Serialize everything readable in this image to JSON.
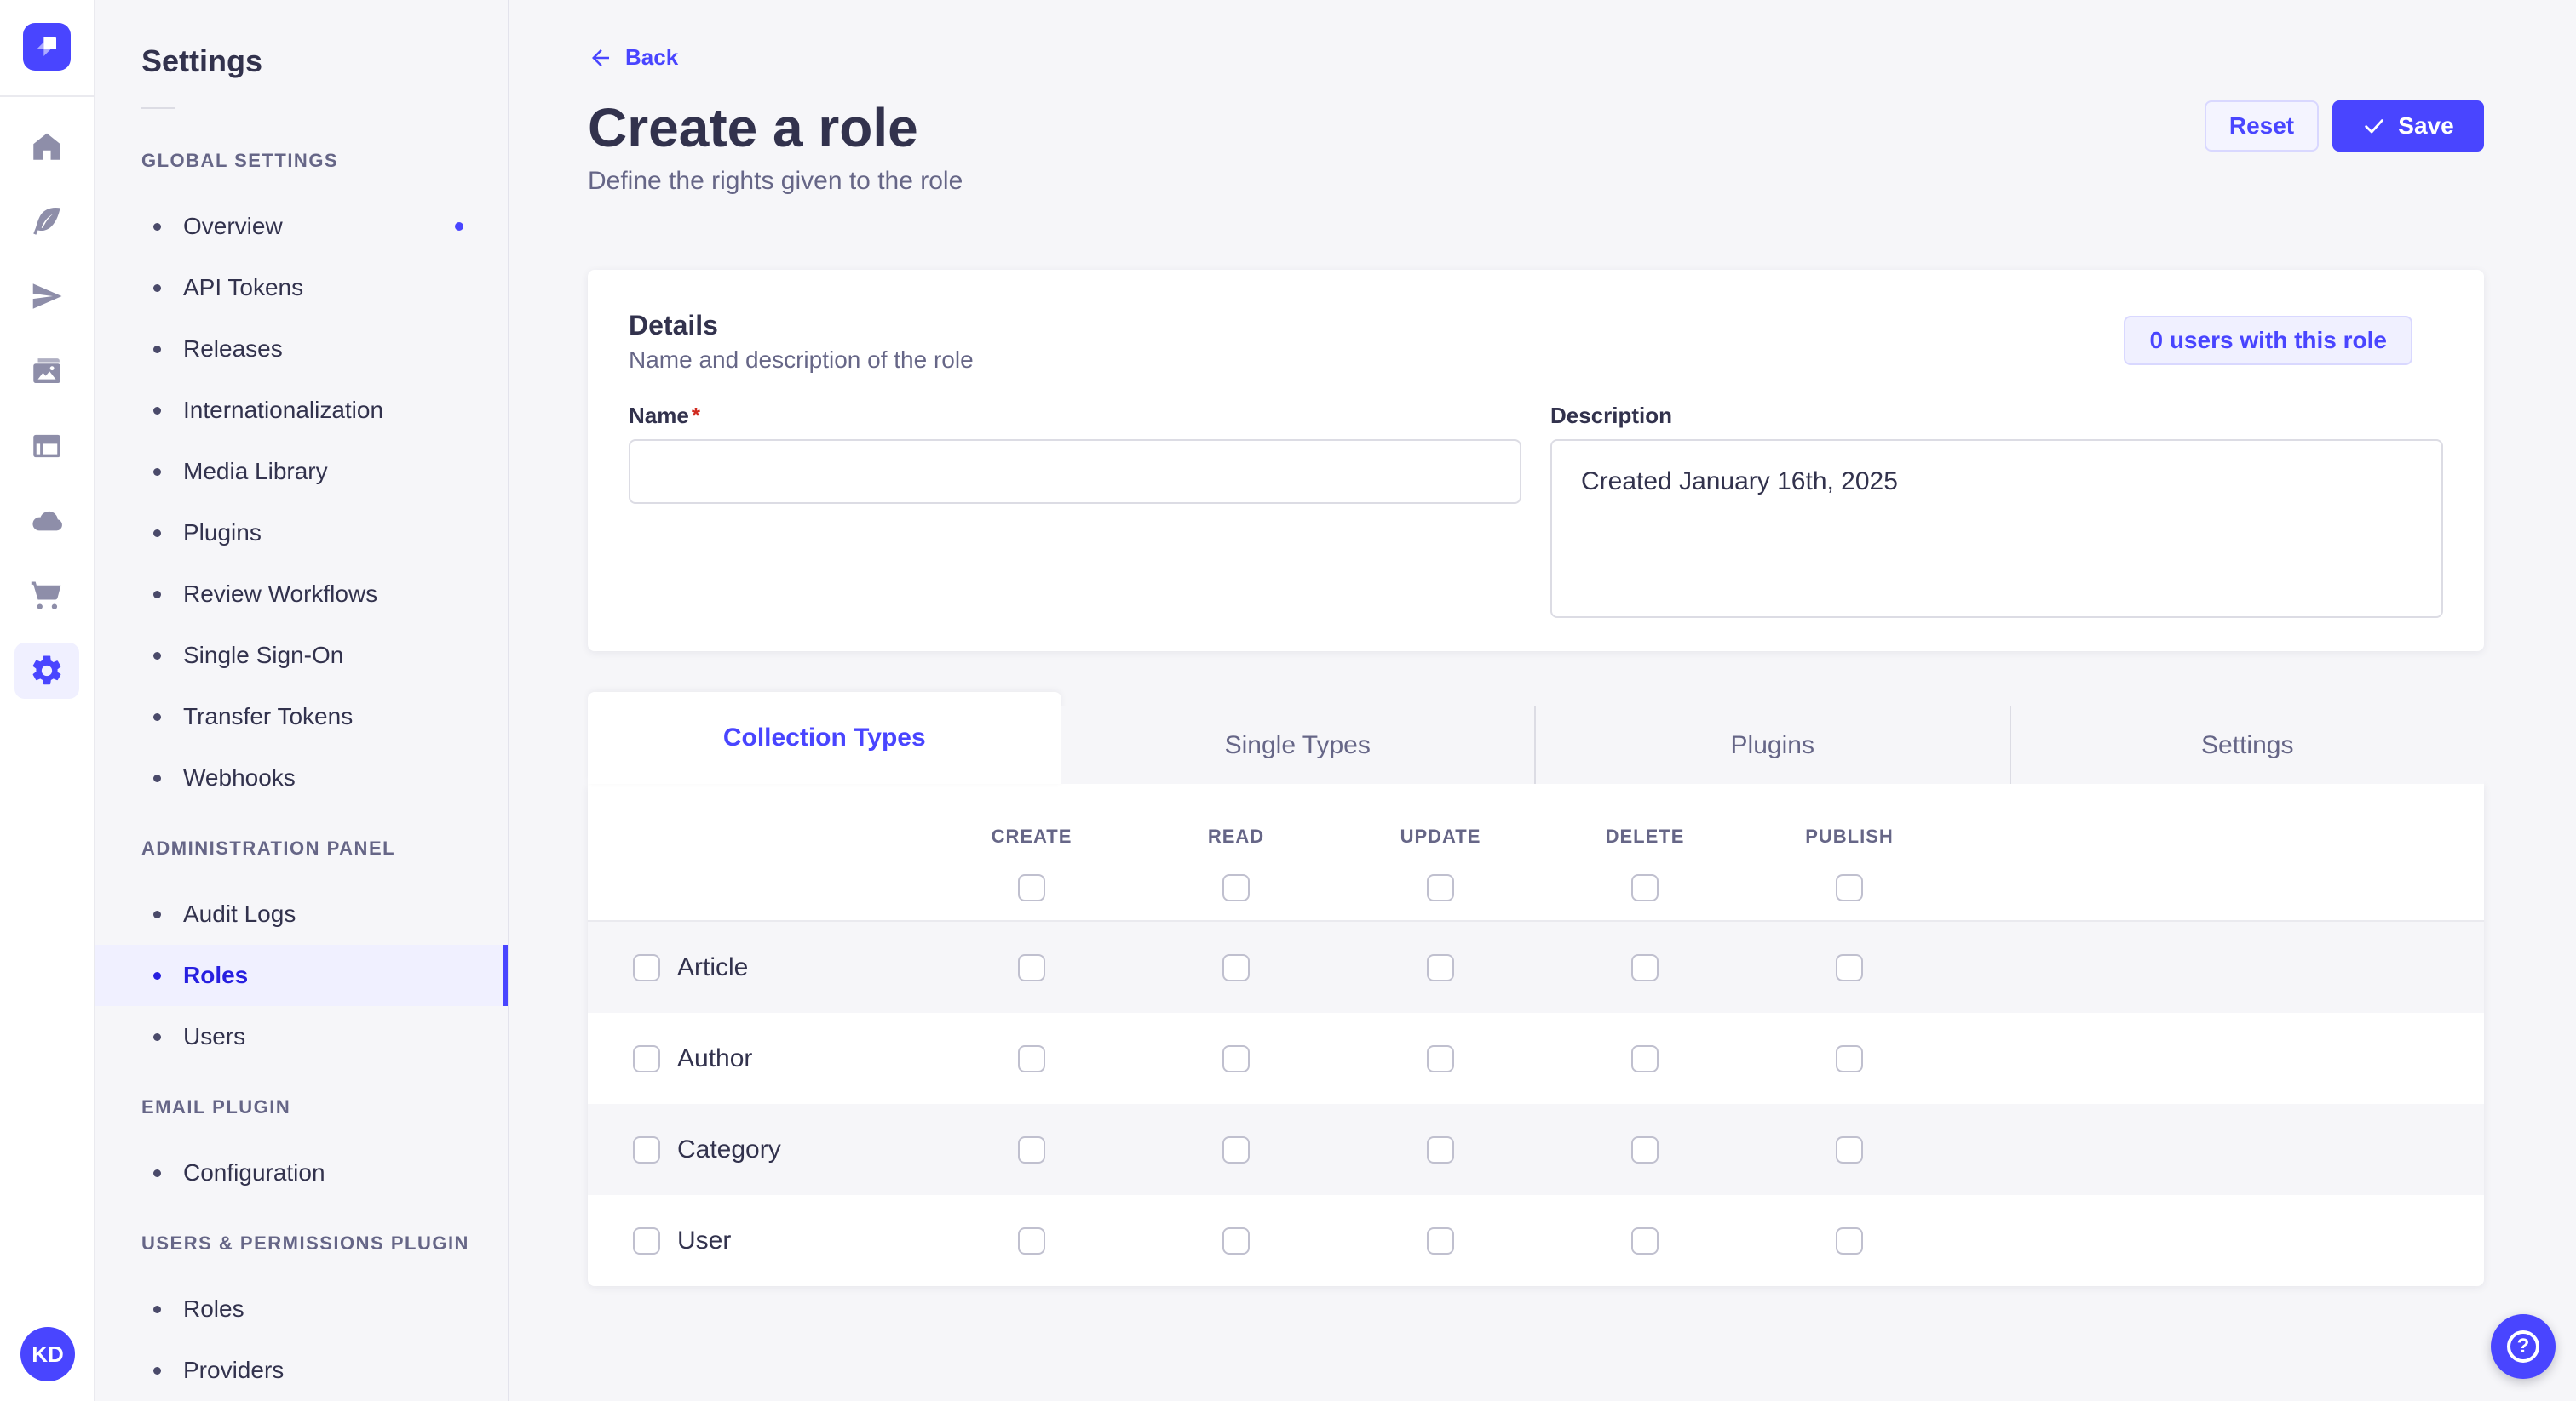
{
  "rail": {
    "logo": "strapi-logo",
    "icons": [
      {
        "name": "home-icon"
      },
      {
        "name": "content-manager-icon"
      },
      {
        "name": "releases-icon"
      },
      {
        "name": "media-library-icon"
      },
      {
        "name": "content-type-builder-icon"
      },
      {
        "name": "deploy-icon"
      },
      {
        "name": "marketplace-icon"
      },
      {
        "name": "settings-icon",
        "active": true
      }
    ],
    "avatar_initials": "KD"
  },
  "sidebar": {
    "title": "Settings",
    "sections": [
      {
        "label": "GLOBAL SETTINGS",
        "items": [
          {
            "label": "Overview",
            "notification": true
          },
          {
            "label": "API Tokens"
          },
          {
            "label": "Releases"
          },
          {
            "label": "Internationalization"
          },
          {
            "label": "Media Library"
          },
          {
            "label": "Plugins"
          },
          {
            "label": "Review Workflows"
          },
          {
            "label": "Single Sign-On"
          },
          {
            "label": "Transfer Tokens"
          },
          {
            "label": "Webhooks"
          }
        ]
      },
      {
        "label": "ADMINISTRATION PANEL",
        "items": [
          {
            "label": "Audit Logs"
          },
          {
            "label": "Roles",
            "active": true
          },
          {
            "label": "Users"
          }
        ]
      },
      {
        "label": "EMAIL PLUGIN",
        "items": [
          {
            "label": "Configuration"
          }
        ]
      },
      {
        "label": "USERS & PERMISSIONS PLUGIN",
        "items": [
          {
            "label": "Roles"
          },
          {
            "label": "Providers"
          }
        ]
      }
    ]
  },
  "header": {
    "back_label": "Back",
    "title": "Create a role",
    "subtitle": "Define the rights given to the role",
    "reset_label": "Reset",
    "save_label": "Save"
  },
  "details": {
    "title": "Details",
    "subtitle": "Name and description of the role",
    "users_badge": "0 users with this role",
    "name_label": "Name",
    "name_required": "*",
    "name_value": "",
    "description_label": "Description",
    "description_value": "Created January 16th, 2025"
  },
  "tabs": [
    {
      "label": "Collection Types",
      "active": true
    },
    {
      "label": "Single Types"
    },
    {
      "label": "Plugins"
    },
    {
      "label": "Settings"
    }
  ],
  "permissions": {
    "columns": [
      "CREATE",
      "READ",
      "UPDATE",
      "DELETE",
      "PUBLISH"
    ],
    "rows": [
      {
        "label": "Article",
        "checked": [
          false,
          false,
          false,
          false,
          false
        ]
      },
      {
        "label": "Author",
        "checked": [
          false,
          false,
          false,
          false,
          false
        ]
      },
      {
        "label": "Category",
        "checked": [
          false,
          false,
          false,
          false,
          false
        ]
      },
      {
        "label": "User",
        "checked": [
          false,
          false,
          false,
          false,
          false
        ]
      }
    ]
  },
  "colors": {
    "primary": "#4945ff",
    "primary_dark": "#271fe0",
    "primary_bg": "#f0f0ff",
    "primary_border": "#d9d8ff",
    "background": "#f6f6f9",
    "surface": "#ffffff",
    "border": "#dcdce4",
    "checkbox_border": "#c0c0cf",
    "text": "#32324d",
    "text_secondary": "#666687",
    "required": "#d02b20"
  }
}
